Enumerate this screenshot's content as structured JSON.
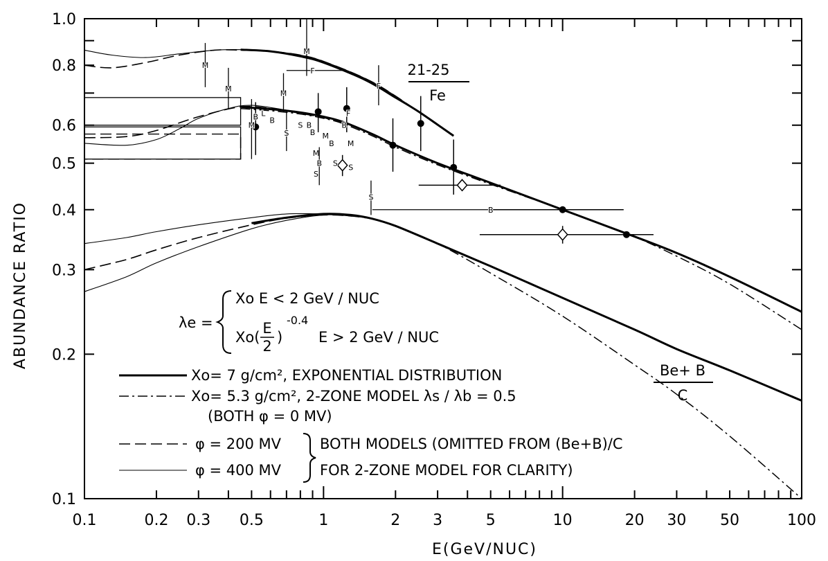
{
  "chart_data": {
    "type": "line",
    "title": "",
    "xlabel": "E(GeV/NUC)",
    "ylabel": "ABUNDANCE RATIO",
    "xscale": "log",
    "yscale": "log",
    "xlim": [
      0.1,
      100
    ],
    "ylim": [
      0.1,
      1.0
    ],
    "grid": false,
    "x_ticks": [
      {
        "v": 0.1,
        "label": "0.1"
      },
      {
        "v": 0.2,
        "label": "0.2"
      },
      {
        "v": 0.3,
        "label": "0.3"
      },
      {
        "v": 0.5,
        "label": "0.5"
      },
      {
        "v": 1,
        "label": "1"
      },
      {
        "v": 2,
        "label": "2"
      },
      {
        "v": 3,
        "label": "3"
      },
      {
        "v": 5,
        "label": "5"
      },
      {
        "v": 10,
        "label": "10"
      },
      {
        "v": 20,
        "label": "20"
      },
      {
        "v": 30,
        "label": "30"
      },
      {
        "v": 50,
        "label": "50"
      },
      {
        "v": 100,
        "label": "100"
      }
    ],
    "y_ticks": [
      {
        "v": 0.1,
        "label": "0.1"
      },
      {
        "v": 0.2,
        "label": "0.2"
      },
      {
        "v": 0.3,
        "label": "0.3"
      },
      {
        "v": 0.4,
        "label": "0.4"
      },
      {
        "v": 0.5,
        "label": "0.5"
      },
      {
        "v": 0.6,
        "label": "0.6"
      },
      {
        "v": 0.8,
        "label": "0.8"
      },
      {
        "v": 1.0,
        "label": "1.0"
      }
    ],
    "curve_labels": {
      "iron_top": "21-25",
      "iron_bottom": "Fe",
      "bec_top": "Be+ B",
      "bec_bottom": "C"
    },
    "formula": {
      "lambda": "λe =",
      "case1": "Xo E < 2 GeV / NUC",
      "case2_pre": "Xo(",
      "case2_frac_top": "E",
      "case2_frac_bottom": "2",
      "case2_exp": "-0.4",
      "case2_post": "E > 2 GeV / NUC"
    },
    "legend": [
      {
        "style": "solid-thick",
        "text": "Xo= 7 g/cm², EXPONENTIAL DISTRIBUTION"
      },
      {
        "style": "dash-dot",
        "text": "Xo= 5.3 g/cm², 2-ZONE MODEL  λs / λb = 0.5"
      },
      {
        "style": "none",
        "text": "(BOTH φ = 0 MV)"
      },
      {
        "style": "dashed",
        "text": "φ = 200 MV"
      },
      {
        "style": "solid-thin",
        "text": "φ = 400 MV"
      }
    ],
    "legend_brace_text": [
      "BOTH MODELS (OMITTED FROM (Be+B)/C",
      "FOR 2-ZONE MODEL FOR CLARITY)"
    ],
    "series": [
      {
        "name": "Xo= 7 g/cm², EXPONENTIAL DISTRIBUTION",
        "style": "solid-thick",
        "group": "21-25/Fe",
        "x": [
          0.45,
          0.6,
          0.8,
          1.0,
          1.2,
          1.6,
          2.0,
          3.0,
          5.0,
          10,
          19,
          30,
          50,
          100
        ],
        "y": [
          0.655,
          0.648,
          0.638,
          0.625,
          0.61,
          0.575,
          0.545,
          0.5,
          0.455,
          0.4,
          0.355,
          0.325,
          0.29,
          0.245
        ]
      },
      {
        "name": "Xo= 5.3 g/cm², 2-ZONE MODEL",
        "style": "dash-dot",
        "group": "21-25/Fe",
        "x": [
          0.45,
          0.6,
          0.8,
          1.0,
          1.2,
          1.6,
          2.0,
          3.0,
          5.0,
          10,
          19,
          30,
          50,
          100
        ],
        "y": [
          0.65,
          0.643,
          0.633,
          0.62,
          0.605,
          0.57,
          0.54,
          0.496,
          0.452,
          0.4,
          0.355,
          0.32,
          0.28,
          0.225
        ]
      },
      {
        "name": "φ = 200 MV",
        "style": "dashed",
        "group": "21-25/Fe",
        "x": [
          0.1,
          0.15,
          0.2,
          0.3,
          0.45,
          0.6,
          0.8,
          1.0,
          1.3
        ],
        "y": [
          0.565,
          0.568,
          0.585,
          0.625,
          0.655,
          0.65,
          0.635,
          0.622,
          0.6
        ]
      },
      {
        "name": "φ = 400 MV",
        "style": "solid-thin",
        "group": "21-25/Fe",
        "x": [
          0.1,
          0.15,
          0.2,
          0.25,
          0.3,
          0.4,
          0.5,
          0.7,
          1.0,
          1.3
        ],
        "y": [
          0.55,
          0.545,
          0.56,
          0.59,
          0.62,
          0.65,
          0.66,
          0.645,
          0.625,
          0.6
        ]
      },
      {
        "name": "Xo= 7 g/cm², EXPONENTIAL DISTRIBUTION",
        "style": "solid-thick",
        "group": "Be+B/C",
        "x": [
          0.5,
          0.7,
          1.0,
          1.3,
          1.6,
          2.0,
          3.0,
          5.0,
          10,
          20,
          30,
          50,
          100
        ],
        "y": [
          0.375,
          0.385,
          0.392,
          0.39,
          0.383,
          0.37,
          0.34,
          0.305,
          0.262,
          0.225,
          0.205,
          0.185,
          0.16
        ]
      },
      {
        "name": "Xo= 5.3 g/cm², 2-ZONE MODEL",
        "style": "dash-dot",
        "group": "Be+B/C",
        "x": [
          0.5,
          0.7,
          1.0,
          1.3,
          1.6,
          2.0,
          3.0,
          5.0,
          10,
          20,
          30,
          50,
          100
        ],
        "y": [
          0.375,
          0.385,
          0.392,
          0.39,
          0.383,
          0.37,
          0.34,
          0.295,
          0.24,
          0.19,
          0.165,
          0.135,
          0.1
        ]
      },
      {
        "name": "φ = 200 MV",
        "style": "dashed",
        "group": "Be+B/C",
        "x": [
          0.1,
          0.15,
          0.2,
          0.3,
          0.5,
          0.7,
          1.0,
          1.3,
          1.6
        ],
        "y": [
          0.3,
          0.315,
          0.33,
          0.35,
          0.372,
          0.384,
          0.39,
          0.388,
          0.383
        ]
      },
      {
        "name": "φ = 400 MV",
        "style": "solid-thin",
        "group": "Be+B/C",
        "x": [
          0.1,
          0.15,
          0.2,
          0.3,
          0.5,
          0.7,
          1.0,
          1.3,
          1.6
        ],
        "y": [
          0.27,
          0.29,
          0.31,
          0.335,
          0.365,
          0.38,
          0.39,
          0.388,
          0.383
        ]
      },
      {
        "name": "φ = 400 MV",
        "style": "solid-thin",
        "group": "Be+B/C",
        "x": [
          0.1,
          0.15,
          0.2,
          0.3,
          0.5,
          0.7,
          1.0,
          1.3
        ],
        "y": [
          0.34,
          0.35,
          0.36,
          0.372,
          0.385,
          0.392,
          0.392,
          0.39
        ]
      },
      {
        "name": "φ = 200 MV",
        "style": "dashed",
        "group": "upper",
        "x": [
          0.1,
          0.13,
          0.18,
          0.25,
          0.35,
          0.45,
          0.6,
          0.8,
          1.0,
          1.5,
          2.0,
          3.0
        ],
        "y": [
          0.8,
          0.79,
          0.81,
          0.84,
          0.86,
          0.86,
          0.855,
          0.84,
          0.815,
          0.75,
          0.69,
          0.6
        ]
      },
      {
        "name": "φ = 400 MV",
        "style": "solid-thin",
        "group": "upper",
        "x": [
          0.1,
          0.13,
          0.18,
          0.25,
          0.35,
          0.45,
          0.6,
          0.8,
          1.0,
          1.5,
          2.0,
          3.0
        ],
        "y": [
          0.86,
          0.84,
          0.83,
          0.845,
          0.86,
          0.862,
          0.855,
          0.84,
          0.815,
          0.75,
          0.69,
          0.6
        ]
      },
      {
        "name": "Xo= 7 g/cm², EXPONENTIAL DISTRIBUTION",
        "style": "solid-thick",
        "group": "upper",
        "x": [
          0.45,
          0.6,
          0.8,
          1.0,
          1.5,
          2.0,
          2.5,
          3.5
        ],
        "y": [
          0.862,
          0.855,
          0.835,
          0.81,
          0.745,
          0.685,
          0.64,
          0.57
        ]
      }
    ],
    "data_points": [
      {
        "x": 0.52,
        "y": 0.595,
        "ylo": 0.52,
        "yhi": 0.67,
        "marker": "filled-circle"
      },
      {
        "x": 0.95,
        "y": 0.64,
        "ylo": 0.58,
        "yhi": 0.7,
        "marker": "filled-circle"
      },
      {
        "x": 1.25,
        "y": 0.65,
        "ylo": 0.58,
        "yhi": 0.72,
        "marker": "filled-circle"
      },
      {
        "x": 1.95,
        "y": 0.545,
        "ylo": 0.48,
        "yhi": 0.62,
        "marker": "filled-circle"
      },
      {
        "x": 2.55,
        "y": 0.605,
        "ylo": 0.53,
        "yhi": 0.69,
        "marker": "filled-circle"
      },
      {
        "x": 3.5,
        "y": 0.49,
        "ylo": 0.43,
        "yhi": 0.56,
        "marker": "filled-circle"
      },
      {
        "x": 10.0,
        "y": 0.4,
        "xlo": 5.0,
        "xhi": 18.0,
        "marker": "filled-circle"
      },
      {
        "x": 18.5,
        "y": 0.355,
        "xlo": 12.0,
        "xhi": 24.0,
        "marker": "filled-circle"
      },
      {
        "x": 1.2,
        "y": 0.495,
        "ylo": 0.47,
        "yhi": 0.52,
        "marker": "open-diamond"
      },
      {
        "x": 3.8,
        "y": 0.45,
        "xlo": 2.5,
        "xhi": 5.5,
        "marker": "open-diamond"
      },
      {
        "x": 10.0,
        "y": 0.355,
        "xlo": 4.5,
        "xhi": 18.0,
        "ylo": 0.34,
        "yhi": 0.37,
        "marker": "open-diamond"
      }
    ],
    "letter_markers": [
      {
        "x": 0.32,
        "y": 0.8,
        "ylo": 0.72,
        "yhi": 0.89,
        "label": "M"
      },
      {
        "x": 0.4,
        "y": 0.715,
        "ylo": 0.65,
        "yhi": 0.79,
        "label": "M"
      },
      {
        "x": 0.5,
        "y": 0.6,
        "ylo": 0.51,
        "yhi": 0.68,
        "label": "M"
      },
      {
        "x": 0.52,
        "y": 0.625,
        "label": "B"
      },
      {
        "x": 0.56,
        "y": 0.635,
        "label": "L"
      },
      {
        "x": 0.61,
        "y": 0.615,
        "label": "B"
      },
      {
        "x": 0.68,
        "y": 0.7,
        "ylo": 0.64,
        "yhi": 0.77,
        "label": "M"
      },
      {
        "x": 0.7,
        "y": 0.578,
        "ylo": 0.53,
        "yhi": 0.64,
        "label": "S"
      },
      {
        "x": 0.8,
        "y": 0.6,
        "label": "S"
      },
      {
        "x": 0.87,
        "y": 0.6,
        "label": "B"
      },
      {
        "x": 0.85,
        "y": 0.855,
        "ylo": 0.76,
        "yhi": 1.0,
        "label": "M"
      },
      {
        "x": 0.9,
        "y": 0.58,
        "label": "B"
      },
      {
        "x": 0.93,
        "y": 0.525,
        "label": "M"
      },
      {
        "x": 0.96,
        "y": 0.5,
        "ylo": 0.45,
        "yhi": 0.54,
        "label": "B"
      },
      {
        "x": 0.93,
        "y": 0.475,
        "label": "S"
      },
      {
        "x": 1.02,
        "y": 0.57,
        "label": "M"
      },
      {
        "x": 1.08,
        "y": 0.55,
        "label": "B"
      },
      {
        "x": 1.12,
        "y": 0.5,
        "label": "S"
      },
      {
        "x": 1.22,
        "y": 0.6,
        "label": "B"
      },
      {
        "x": 1.27,
        "y": 0.635,
        "label": "F"
      },
      {
        "x": 1.3,
        "y": 0.55,
        "label": "M"
      },
      {
        "x": 1.3,
        "y": 0.49,
        "label": "S"
      },
      {
        "x": 0.9,
        "y": 0.78,
        "xlo": 0.7,
        "xhi": 1.2,
        "label": "F"
      },
      {
        "x": 1.7,
        "y": 0.725,
        "ylo": 0.66,
        "yhi": 0.8,
        "label": "F"
      },
      {
        "x": 1.58,
        "y": 0.425,
        "ylo": 0.39,
        "yhi": 0.46,
        "label": "S"
      },
      {
        "x": 5.0,
        "y": 0.4,
        "xlo": 1.6,
        "xhi": 10.0,
        "label": "B"
      }
    ],
    "boxes": [
      {
        "x0": 0.1,
        "x1": 0.45,
        "y0": 0.6,
        "y1": 0.685,
        "style": "solid"
      },
      {
        "x0": 0.1,
        "x1": 0.45,
        "y0": 0.51,
        "y1": 0.575,
        "style": "dashed"
      },
      {
        "x0": 0.1,
        "x1": 0.45,
        "y0": 0.51,
        "y1": 0.595,
        "style": "solid"
      }
    ]
  }
}
